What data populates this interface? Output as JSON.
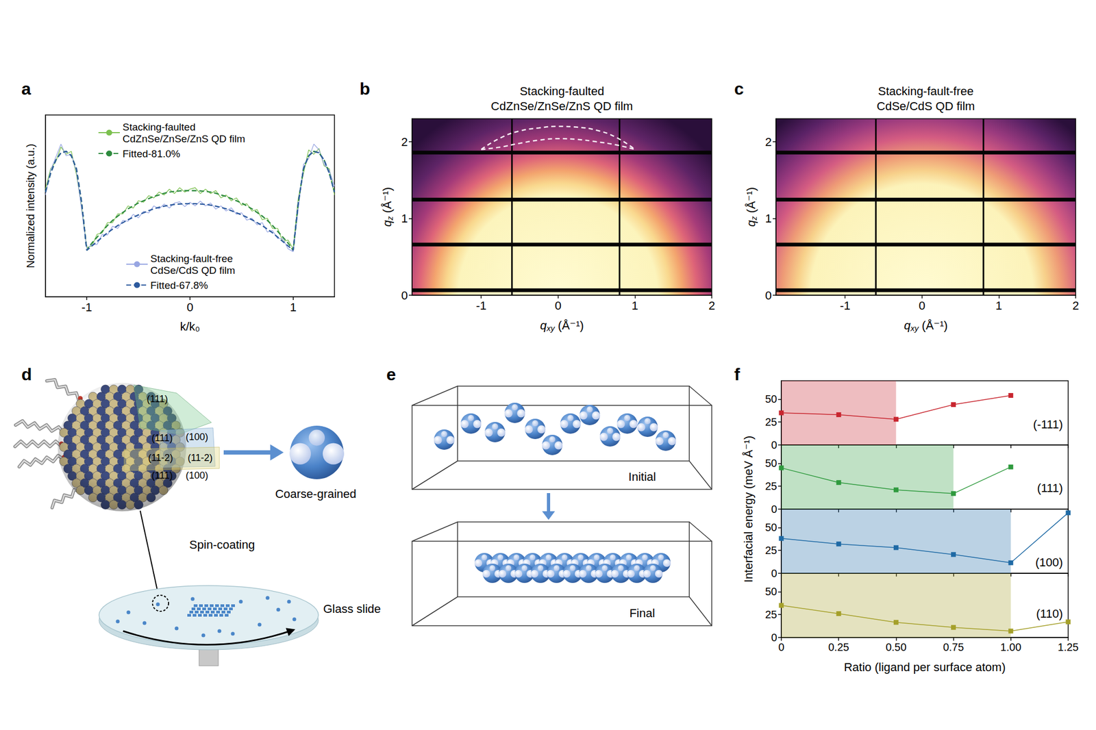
{
  "chart_data": [
    {
      "panel_label": "a",
      "type": "line",
      "xlabel": "k/k₀",
      "ylabel": "Normalized intensity (a.u.)",
      "x": [
        -1.4,
        -1.35,
        -1.3,
        -1.25,
        -1.2,
        -1.15,
        -1.1,
        -1.05,
        -1,
        -0.95,
        -0.9,
        -0.85,
        -0.8,
        -0.75,
        -0.7,
        -0.65,
        -0.6,
        -0.55,
        -0.5,
        -0.45,
        -0.4,
        -0.35,
        -0.3,
        -0.25,
        -0.2,
        -0.15,
        -0.1,
        -0.05,
        0,
        0.05,
        0.1,
        0.15,
        0.2,
        0.25,
        0.3,
        0.35,
        0.4,
        0.45,
        0.5,
        0.55,
        0.6,
        0.65,
        0.7,
        0.75,
        0.8,
        0.85,
        0.9,
        0.95,
        1,
        1.05,
        1.1,
        1.15,
        1.2,
        1.25,
        1.3,
        1.35,
        1.4
      ],
      "xlim": [
        -1.4,
        1.4
      ],
      "xticks": [
        -1,
        0,
        1
      ],
      "ylim": [
        -0.1,
        1.15
      ],
      "tick_labels": "x",
      "legend": "inside",
      "series": [
        {
          "name": "Stacking-faulted CdZnSe/ZnSe/ZnS QD film",
          "color": "#7cc04f",
          "line_style": "solid",
          "values": [
            0.64,
            0.78,
            0.83,
            0.93,
            0.88,
            0.9,
            0.74,
            0.52,
            0.24,
            0.25,
            0.33,
            0.34,
            0.41,
            0.41,
            0.47,
            0.47,
            0.525,
            0.51,
            0.56,
            0.55,
            0.595,
            0.58,
            0.62,
            0.6,
            0.64,
            0.61,
            0.65,
            0.62,
            0.64,
            0.65,
            0.61,
            0.64,
            0.61,
            0.63,
            0.58,
            0.6,
            0.56,
            0.58,
            0.53,
            0.54,
            0.49,
            0.5,
            0.43,
            0.44,
            0.37,
            0.37,
            0.28,
            0.29,
            0.23,
            0.58,
            0.75,
            0.91,
            0.88,
            0.92,
            0.8,
            0.78,
            0.6
          ]
        },
        {
          "name": "Fitted-81.0%",
          "color": "#2e8b3e",
          "line_style": "dashed",
          "values": [
            0.62,
            0.75,
            0.84,
            0.89,
            0.9,
            0.87,
            0.78,
            0.55,
            0.22,
            0.27,
            0.31,
            0.35,
            0.39,
            0.425,
            0.455,
            0.48,
            0.505,
            0.525,
            0.545,
            0.56,
            0.575,
            0.59,
            0.6,
            0.612,
            0.62,
            0.625,
            0.628,
            0.63,
            0.63,
            0.63,
            0.628,
            0.625,
            0.62,
            0.612,
            0.6,
            0.59,
            0.575,
            0.56,
            0.545,
            0.525,
            0.505,
            0.48,
            0.455,
            0.425,
            0.39,
            0.35,
            0.31,
            0.27,
            0.22,
            0.55,
            0.78,
            0.87,
            0.9,
            0.89,
            0.84,
            0.75,
            0.62
          ]
        },
        {
          "name": "Stacking-fault-free CdSe/CdS QD film",
          "color": "#98a6e2",
          "line_style": "solid",
          "values": [
            0.6,
            0.77,
            0.86,
            0.95,
            0.87,
            0.88,
            0.76,
            0.5,
            0.23,
            0.26,
            0.26,
            0.33,
            0.325,
            0.385,
            0.37,
            0.425,
            0.42,
            0.467,
            0.443,
            0.488,
            0.477,
            0.525,
            0.505,
            0.538,
            0.51,
            0.545,
            0.553,
            0.52,
            0.55,
            0.525,
            0.558,
            0.525,
            0.545,
            0.503,
            0.525,
            0.49,
            0.512,
            0.468,
            0.478,
            0.427,
            0.44,
            0.395,
            0.41,
            0.345,
            0.355,
            0.3,
            0.3,
            0.23,
            0.21,
            0.51,
            0.81,
            0.85,
            0.95,
            0.91,
            0.81,
            0.77,
            0.66
          ]
        },
        {
          "name": "Fitted-67.8%",
          "color": "#2d5a9e",
          "line_style": "dashed",
          "values": [
            0.62,
            0.75,
            0.84,
            0.89,
            0.9,
            0.87,
            0.78,
            0.55,
            0.22,
            0.25,
            0.28,
            0.31,
            0.34,
            0.365,
            0.39,
            0.41,
            0.43,
            0.447,
            0.463,
            0.478,
            0.492,
            0.505,
            0.515,
            0.523,
            0.53,
            0.535,
            0.538,
            0.54,
            0.54,
            0.54,
            0.538,
            0.535,
            0.53,
            0.523,
            0.515,
            0.505,
            0.492,
            0.478,
            0.463,
            0.447,
            0.43,
            0.41,
            0.39,
            0.365,
            0.34,
            0.31,
            0.28,
            0.25,
            0.22,
            0.55,
            0.78,
            0.87,
            0.9,
            0.89,
            0.84,
            0.75,
            0.62
          ]
        }
      ]
    },
    {
      "panel_label": "b",
      "type": "image",
      "title": "Stacking-faulted CdZnSe/ZnSe/ZnS QD film",
      "xlabel": "qxy (Å⁻¹)",
      "ylabel": "qz (Å⁻¹)",
      "xlim": [
        -1.9,
        2.0
      ],
      "xticks": [
        -1,
        0,
        1,
        2
      ],
      "ylim": [
        0,
        2.3
      ],
      "yticks": [
        0,
        1,
        2
      ],
      "detector_gaps": {
        "qz": [
          0.065,
          0.66,
          1.245,
          1.86
        ],
        "qxy": [
          -0.6,
          0.8
        ]
      },
      "dashed_outline": [
        [
          [
            -1,
            1.9
          ],
          [
            -0.75,
            2.05
          ],
          [
            -0.5,
            2.14
          ],
          [
            -0.25,
            2.18
          ],
          [
            0,
            2.2
          ],
          [
            0.25,
            2.19
          ],
          [
            0.5,
            2.15
          ],
          [
            0.75,
            2.06
          ],
          [
            1,
            1.9
          ]
        ],
        [
          [
            -1,
            1.9
          ],
          [
            -0.75,
            1.93
          ],
          [
            -0.5,
            1.98
          ],
          [
            -0.25,
            2.02
          ],
          [
            0,
            2.04
          ],
          [
            0.25,
            2.03
          ],
          [
            0.5,
            2.0
          ],
          [
            0.75,
            1.96
          ],
          [
            1,
            1.9
          ]
        ]
      ]
    },
    {
      "panel_label": "c",
      "type": "image",
      "title": "Stacking-fault-free CdSe/CdS QD film",
      "xlabel": "qxy (Å⁻¹)",
      "ylabel": "qz (Å⁻¹)",
      "xlim": [
        -1.9,
        2.0
      ],
      "xticks": [
        -1,
        0,
        1,
        2
      ],
      "ylim": [
        0,
        2.3
      ],
      "yticks": [
        0,
        1,
        2
      ],
      "detector_gaps": {
        "qz": [
          0.065,
          0.66,
          1.245,
          1.86
        ],
        "qxy": [
          -0.6,
          0.8
        ]
      }
    },
    {
      "panel_label": "f",
      "type": "line",
      "xlabel": "Ratio (ligand per surface atom)",
      "ylabel": "Interfacial energy (meV Å⁻¹)",
      "xlim": [
        0,
        1.25
      ],
      "xticks": [
        0,
        0.25,
        {
          "value": 0.5,
          "label": "0.50"
        },
        0.75,
        {
          "value": 1,
          "label": "1.00"
        },
        1.25
      ],
      "marker": "square",
      "subplots": [
        {
          "annotation": "(-111)",
          "ylim": [
            0,
            70
          ],
          "yticks": [
            0,
            25,
            50
          ],
          "color": "#c8262f",
          "x": [
            0,
            0.25,
            0.5,
            0.75,
            1
          ],
          "values": [
            35,
            33,
            28,
            44,
            54
          ],
          "shaded": [
            0,
            0.5
          ]
        },
        {
          "annotation": "(111)",
          "ylim": [
            0,
            70
          ],
          "yticks": [
            0,
            25,
            50
          ],
          "color": "#2f9a3e",
          "x": [
            0,
            0.25,
            0.5,
            0.75,
            1
          ],
          "values": [
            45,
            29,
            21,
            17,
            46
          ],
          "shaded": [
            0,
            0.75
          ]
        },
        {
          "annotation": "(100)",
          "ylim": [
            0,
            70
          ],
          "yticks": [
            0,
            25,
            50
          ],
          "color": "#1f6aa5",
          "x": [
            0,
            0.25,
            0.5,
            0.75,
            1,
            1.25
          ],
          "values": [
            38,
            32,
            28,
            20.5,
            11.5,
            66
          ],
          "shaded": [
            0,
            1
          ]
        },
        {
          "annotation": "(110)",
          "ylim": [
            0,
            70
          ],
          "yticks": [
            0,
            25,
            50
          ],
          "color": "#a5a02a",
          "x": [
            0,
            0.25,
            0.5,
            0.75,
            1,
            1.25
          ],
          "values": [
            35,
            26,
            16.5,
            11,
            7,
            17
          ],
          "shaded": [
            0,
            1
          ]
        }
      ]
    }
  ],
  "diagrams": {
    "d": {
      "panel_label": "d",
      "facet_labels": [
        "(111)",
        "(111)",
        "(100)",
        "(11-2)",
        "(11-2)",
        "(111)",
        "(100)"
      ],
      "coarse_grained": "Coarse-grained",
      "spin_coating": "Spin-coating",
      "substrate": "Glass slide"
    },
    "e": {
      "panel_label": "e",
      "states": [
        "Initial",
        "Final"
      ]
    }
  }
}
